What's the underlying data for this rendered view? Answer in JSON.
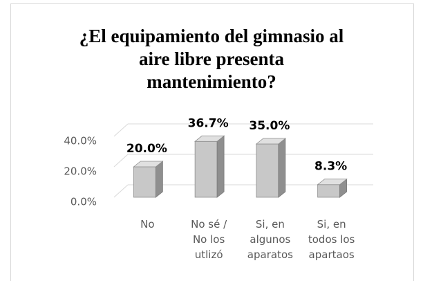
{
  "chart_data": {
    "type": "bar3d",
    "title": "¿El equipamiento del gimnasio al aire libre presenta mantenimiento?",
    "categories": [
      "No",
      "No sé / No los utlizó",
      "Si, en algunos aparatos",
      "Si, en todos los apartaos"
    ],
    "values": [
      20.0,
      36.7,
      35.0,
      8.3
    ],
    "value_labels": [
      "20.0%",
      "36.7%",
      "35.0%",
      "8.3%"
    ],
    "color": "#c8c8c8",
    "ylim": [
      0,
      40
    ],
    "yticks": [
      {
        "value": 0,
        "label": "0.0%"
      },
      {
        "value": 20,
        "label": "20.0%"
      },
      {
        "value": 40,
        "label": "40.0%"
      }
    ],
    "grid": true
  }
}
